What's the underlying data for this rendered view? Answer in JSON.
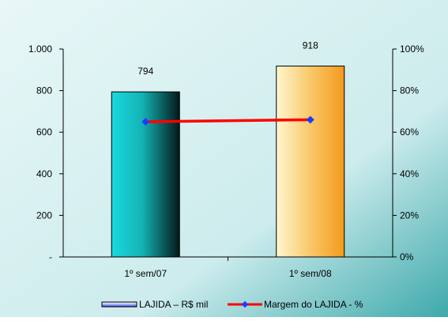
{
  "chart_data": {
    "type": "bar",
    "categories": [
      "1º sem/07",
      "1º sem/08"
    ],
    "series": [
      {
        "name": "LAJIDA – R$ mil",
        "type": "bar",
        "axis": "left",
        "values": [
          794,
          918
        ]
      },
      {
        "name": "Margem do LAJIDA - %",
        "type": "line",
        "axis": "right",
        "values": [
          65,
          66
        ]
      }
    ],
    "data_labels": [
      "794",
      "918"
    ],
    "y_left": {
      "min": 0,
      "max": 1000,
      "ticks": [
        0,
        200,
        400,
        600,
        800,
        1000
      ],
      "tick_labels": [
        "-",
        "200",
        "400",
        "600",
        "800",
        "1.000"
      ]
    },
    "y_right": {
      "min": 0,
      "max": 100,
      "ticks": [
        0,
        20,
        40,
        60,
        80,
        100
      ],
      "tick_labels": [
        "0%",
        "20%",
        "40%",
        "60%",
        "80%",
        "100%"
      ]
    },
    "grid": false,
    "legend_position": "bottom",
    "colors": {
      "bar1": "#1fd3d6",
      "bar2": "#f7b64c",
      "line": "#ff0000",
      "marker": "#1a3cff",
      "background_dark": "#3aa6a8",
      "background_light": "#e6f6f6"
    }
  }
}
